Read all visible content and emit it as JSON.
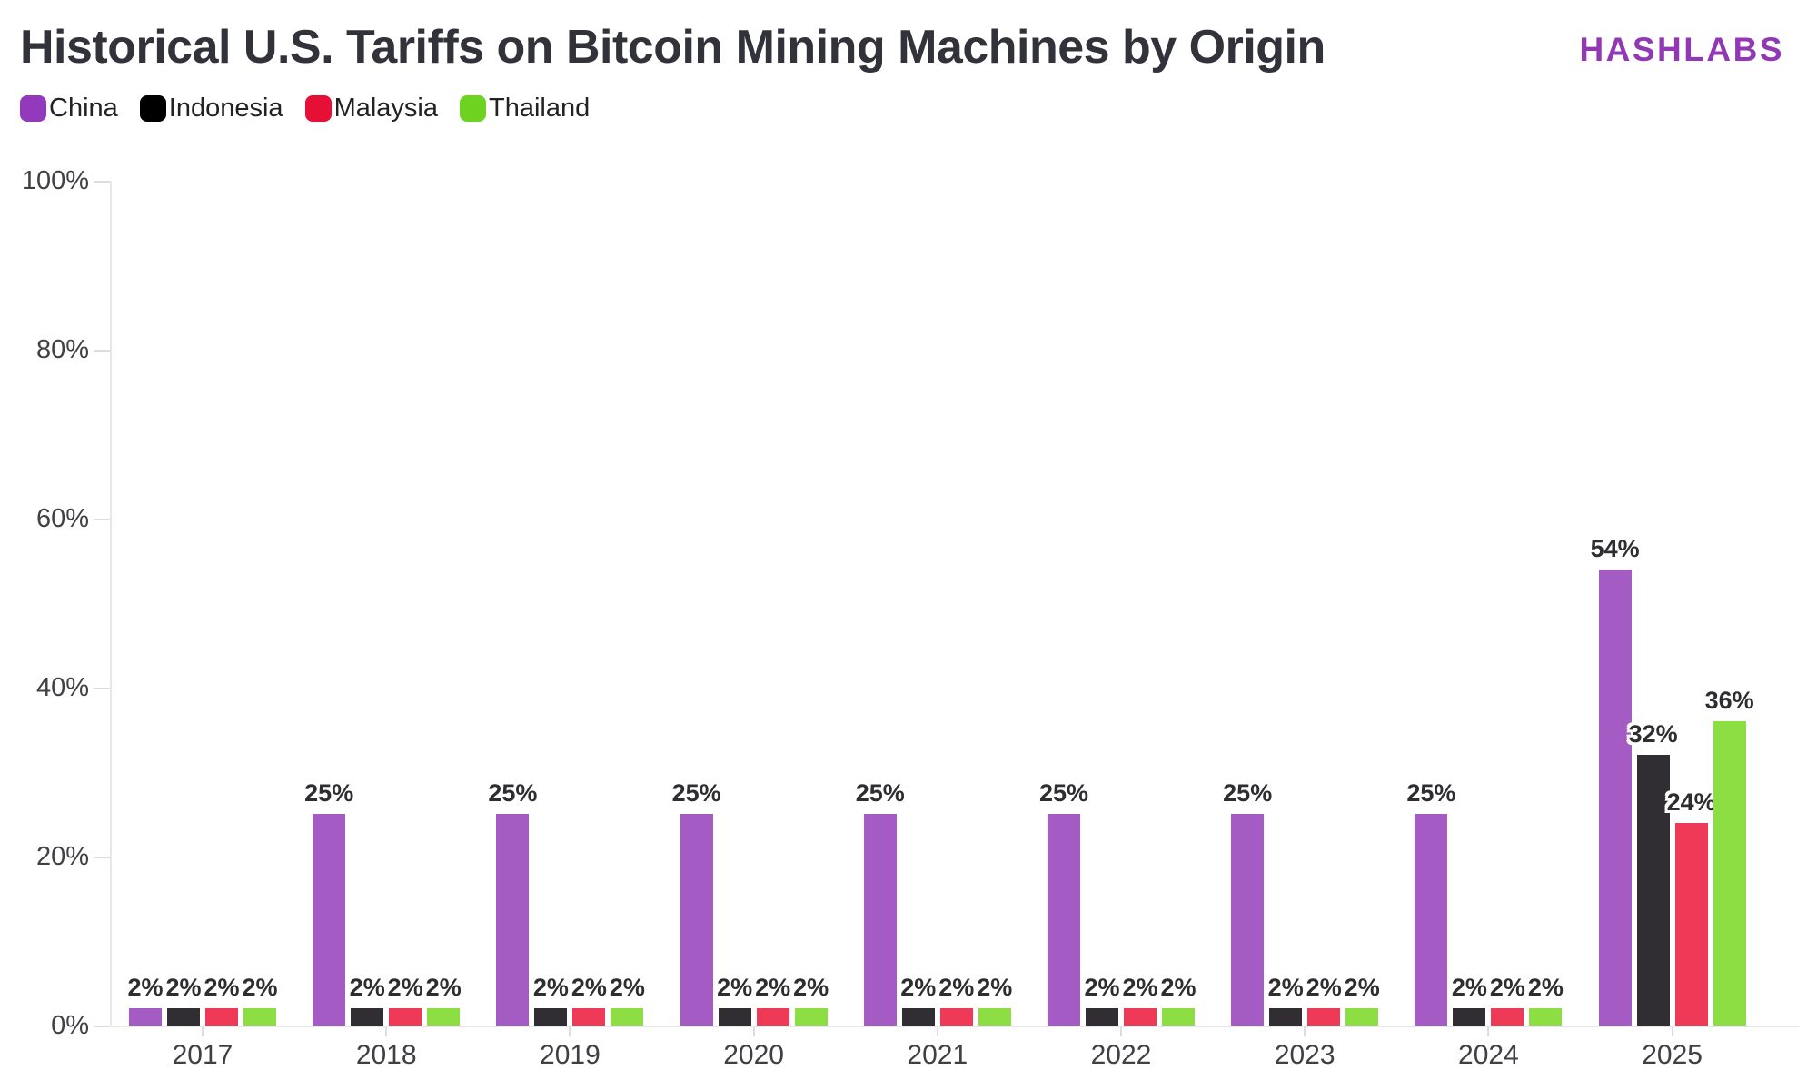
{
  "header": {
    "title": "Historical U.S. Tariffs on Bitcoin Mining Machines by Origin",
    "brand": "HASHLABS"
  },
  "colors": {
    "background": "#FFFFFF",
    "title_text": "#32323A",
    "brand_text": "#9238B4",
    "axis_text": "#414145",
    "axis_line": "#E7E7EA",
    "tick_mark": "#DDDDE0",
    "value_label_text": "#2E2E31",
    "legend_text": "#222222"
  },
  "chart_data": {
    "type": "bar",
    "title": "Historical U.S. Tariffs on Bitcoin Mining Machines by Origin",
    "categories": [
      "2017",
      "2018",
      "2019",
      "2020",
      "2021",
      "2022",
      "2023",
      "2024",
      "2025"
    ],
    "series": [
      {
        "name": "China",
        "legend_color": "#9239BE",
        "bar_color": "#A55BC4",
        "values": [
          2,
          25,
          25,
          25,
          25,
          25,
          25,
          25,
          54
        ]
      },
      {
        "name": "Indonesia",
        "legend_color": "#000000",
        "bar_color": "#302E33",
        "values": [
          2,
          2,
          2,
          2,
          2,
          2,
          2,
          2,
          32
        ]
      },
      {
        "name": "Malaysia",
        "legend_color": "#E60F35",
        "bar_color": "#EE3A56",
        "values": [
          2,
          2,
          2,
          2,
          2,
          2,
          2,
          2,
          24
        ]
      },
      {
        "name": "Thailand",
        "legend_color": "#6ED320",
        "bar_color": "#8CDE43",
        "values": [
          2,
          2,
          2,
          2,
          2,
          2,
          2,
          2,
          36
        ]
      }
    ],
    "xlabel": "",
    "ylabel": "",
    "ylim": [
      0,
      100
    ],
    "y_ticks": [
      0,
      20,
      40,
      60,
      80,
      100
    ],
    "y_tick_suffix": "%",
    "value_label_suffix": "%",
    "legend_position": "top-left",
    "grid": false
  }
}
